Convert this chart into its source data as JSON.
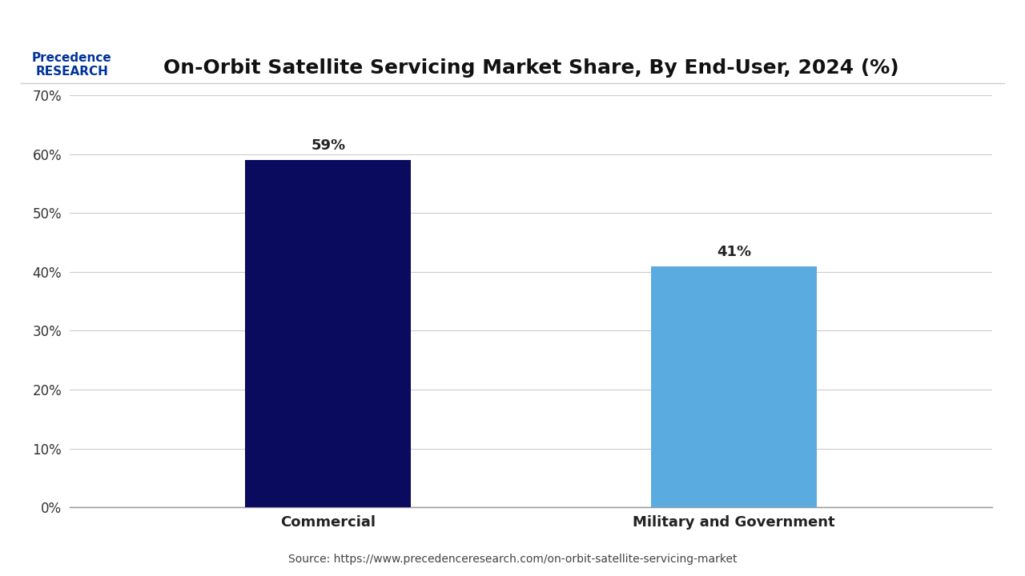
{
  "title": "On-Orbit Satellite Servicing Market Share, By End-User, 2024 (%)",
  "categories": [
    "Commercial",
    "Military and Government"
  ],
  "values": [
    59,
    41
  ],
  "bar_colors": [
    "#0a0a5e",
    "#5aace0"
  ],
  "ylim": [
    0,
    70
  ],
  "yticks": [
    0,
    10,
    20,
    30,
    40,
    50,
    60,
    70
  ],
  "ytick_labels": [
    "0%",
    "10%",
    "20%",
    "30%",
    "40%",
    "50%",
    "60%",
    "70%"
  ],
  "value_labels": [
    "59%",
    "41%"
  ],
  "source_text": "Source: https://www.precedenceresearch.com/on-orbit-satellite-servicing-market",
  "background_color": "#ffffff",
  "title_fontsize": 18,
  "tick_fontsize": 12,
  "label_fontsize": 13,
  "bar_label_fontsize": 13
}
